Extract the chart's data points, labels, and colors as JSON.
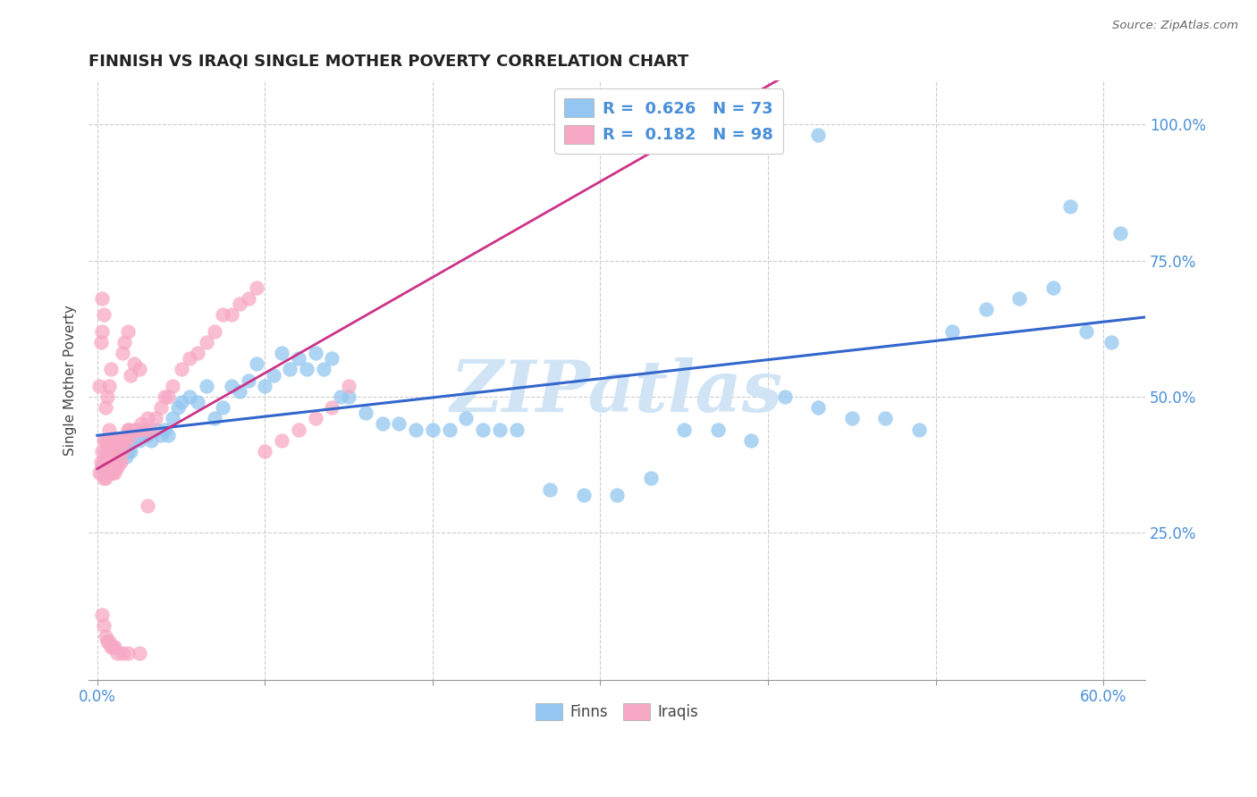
{
  "title": "FINNISH VS IRAQI SINGLE MOTHER POVERTY CORRELATION CHART",
  "source": "Source: ZipAtlas.com",
  "ylabel": "Single Mother Poverty",
  "finn_color": "#93C6F0",
  "iraqi_color": "#F7A8C4",
  "line_color_finn": "#3366CC",
  "line_color_iraqi": "#CC3388",
  "legend_finn_R": "0.626",
  "legend_finn_N": "73",
  "legend_iraqi_R": "0.182",
  "legend_iraqi_N": "98",
  "watermark": "ZIPatlas",
  "watermark_color": "#D0E4F5",
  "xlim": [
    -0.005,
    0.625
  ],
  "ylim": [
    -0.02,
    1.08
  ],
  "x_tick_positions": [
    0.0,
    0.1,
    0.2,
    0.3,
    0.4,
    0.5,
    0.6
  ],
  "x_tick_labels": [
    "0.0%",
    "",
    "",
    "",
    "",
    "",
    "60.0%"
  ],
  "y_tick_positions": [
    0.25,
    0.5,
    0.75,
    1.0
  ],
  "y_tick_labels": [
    "25.0%",
    "50.0%",
    "75.0%",
    "100.0%"
  ],
  "finns_x": [
    0.003,
    0.007,
    0.01,
    0.012,
    0.015,
    0.015,
    0.017,
    0.018,
    0.02,
    0.022,
    0.025,
    0.028,
    0.03,
    0.032,
    0.035,
    0.038,
    0.04,
    0.042,
    0.045,
    0.048,
    0.05,
    0.055,
    0.06,
    0.065,
    0.07,
    0.075,
    0.08,
    0.085,
    0.09,
    0.095,
    0.1,
    0.105,
    0.11,
    0.115,
    0.12,
    0.125,
    0.13,
    0.135,
    0.14,
    0.145,
    0.15,
    0.16,
    0.17,
    0.18,
    0.19,
    0.2,
    0.21,
    0.22,
    0.23,
    0.24,
    0.25,
    0.27,
    0.29,
    0.31,
    0.33,
    0.35,
    0.37,
    0.39,
    0.41,
    0.43,
    0.45,
    0.47,
    0.49,
    0.51,
    0.53,
    0.55,
    0.57,
    0.59,
    0.61,
    0.43,
    0.35,
    0.58,
    0.605
  ],
  "finns_y": [
    0.37,
    0.38,
    0.38,
    0.4,
    0.4,
    0.42,
    0.39,
    0.4,
    0.4,
    0.42,
    0.42,
    0.44,
    0.43,
    0.42,
    0.44,
    0.43,
    0.44,
    0.43,
    0.46,
    0.48,
    0.49,
    0.5,
    0.49,
    0.52,
    0.46,
    0.48,
    0.52,
    0.51,
    0.53,
    0.56,
    0.52,
    0.54,
    0.58,
    0.55,
    0.57,
    0.55,
    0.58,
    0.55,
    0.57,
    0.5,
    0.5,
    0.47,
    0.45,
    0.45,
    0.44,
    0.44,
    0.44,
    0.46,
    0.44,
    0.44,
    0.44,
    0.33,
    0.32,
    0.32,
    0.35,
    0.44,
    0.44,
    0.42,
    0.5,
    0.48,
    0.46,
    0.46,
    0.44,
    0.62,
    0.66,
    0.68,
    0.7,
    0.62,
    0.8,
    0.98,
    1.0,
    0.85,
    0.6
  ],
  "iraqis_x": [
    0.001,
    0.001,
    0.002,
    0.002,
    0.003,
    0.003,
    0.003,
    0.003,
    0.004,
    0.004,
    0.004,
    0.004,
    0.005,
    0.005,
    0.005,
    0.005,
    0.005,
    0.006,
    0.006,
    0.006,
    0.006,
    0.006,
    0.007,
    0.007,
    0.007,
    0.007,
    0.007,
    0.008,
    0.008,
    0.008,
    0.008,
    0.009,
    0.009,
    0.009,
    0.01,
    0.01,
    0.01,
    0.011,
    0.011,
    0.012,
    0.012,
    0.013,
    0.013,
    0.014,
    0.014,
    0.015,
    0.016,
    0.017,
    0.018,
    0.019,
    0.02,
    0.022,
    0.024,
    0.025,
    0.026,
    0.028,
    0.03,
    0.032,
    0.035,
    0.038,
    0.04,
    0.042,
    0.045,
    0.05,
    0.055,
    0.06,
    0.065,
    0.07,
    0.075,
    0.08,
    0.085,
    0.09,
    0.095,
    0.1,
    0.11,
    0.12,
    0.13,
    0.14,
    0.15,
    0.015,
    0.016,
    0.018,
    0.02,
    0.022,
    0.025,
    0.03,
    0.003,
    0.004,
    0.005,
    0.006,
    0.007,
    0.008,
    0.009,
    0.01,
    0.012,
    0.015,
    0.018,
    0.025
  ],
  "iraqis_y": [
    0.36,
    0.52,
    0.6,
    0.38,
    0.36,
    0.4,
    0.62,
    0.68,
    0.35,
    0.38,
    0.42,
    0.65,
    0.35,
    0.38,
    0.4,
    0.42,
    0.48,
    0.36,
    0.38,
    0.4,
    0.42,
    0.5,
    0.36,
    0.38,
    0.4,
    0.44,
    0.52,
    0.36,
    0.38,
    0.42,
    0.55,
    0.36,
    0.38,
    0.42,
    0.36,
    0.38,
    0.42,
    0.37,
    0.4,
    0.37,
    0.4,
    0.38,
    0.42,
    0.38,
    0.42,
    0.4,
    0.42,
    0.42,
    0.44,
    0.44,
    0.43,
    0.44,
    0.44,
    0.44,
    0.45,
    0.44,
    0.46,
    0.44,
    0.46,
    0.48,
    0.5,
    0.5,
    0.52,
    0.55,
    0.57,
    0.58,
    0.6,
    0.62,
    0.65,
    0.65,
    0.67,
    0.68,
    0.7,
    0.4,
    0.42,
    0.44,
    0.46,
    0.48,
    0.52,
    0.58,
    0.6,
    0.62,
    0.54,
    0.56,
    0.55,
    0.3,
    0.1,
    0.08,
    0.06,
    0.05,
    0.05,
    0.04,
    0.04,
    0.04,
    0.03,
    0.03,
    0.03,
    0.03
  ]
}
